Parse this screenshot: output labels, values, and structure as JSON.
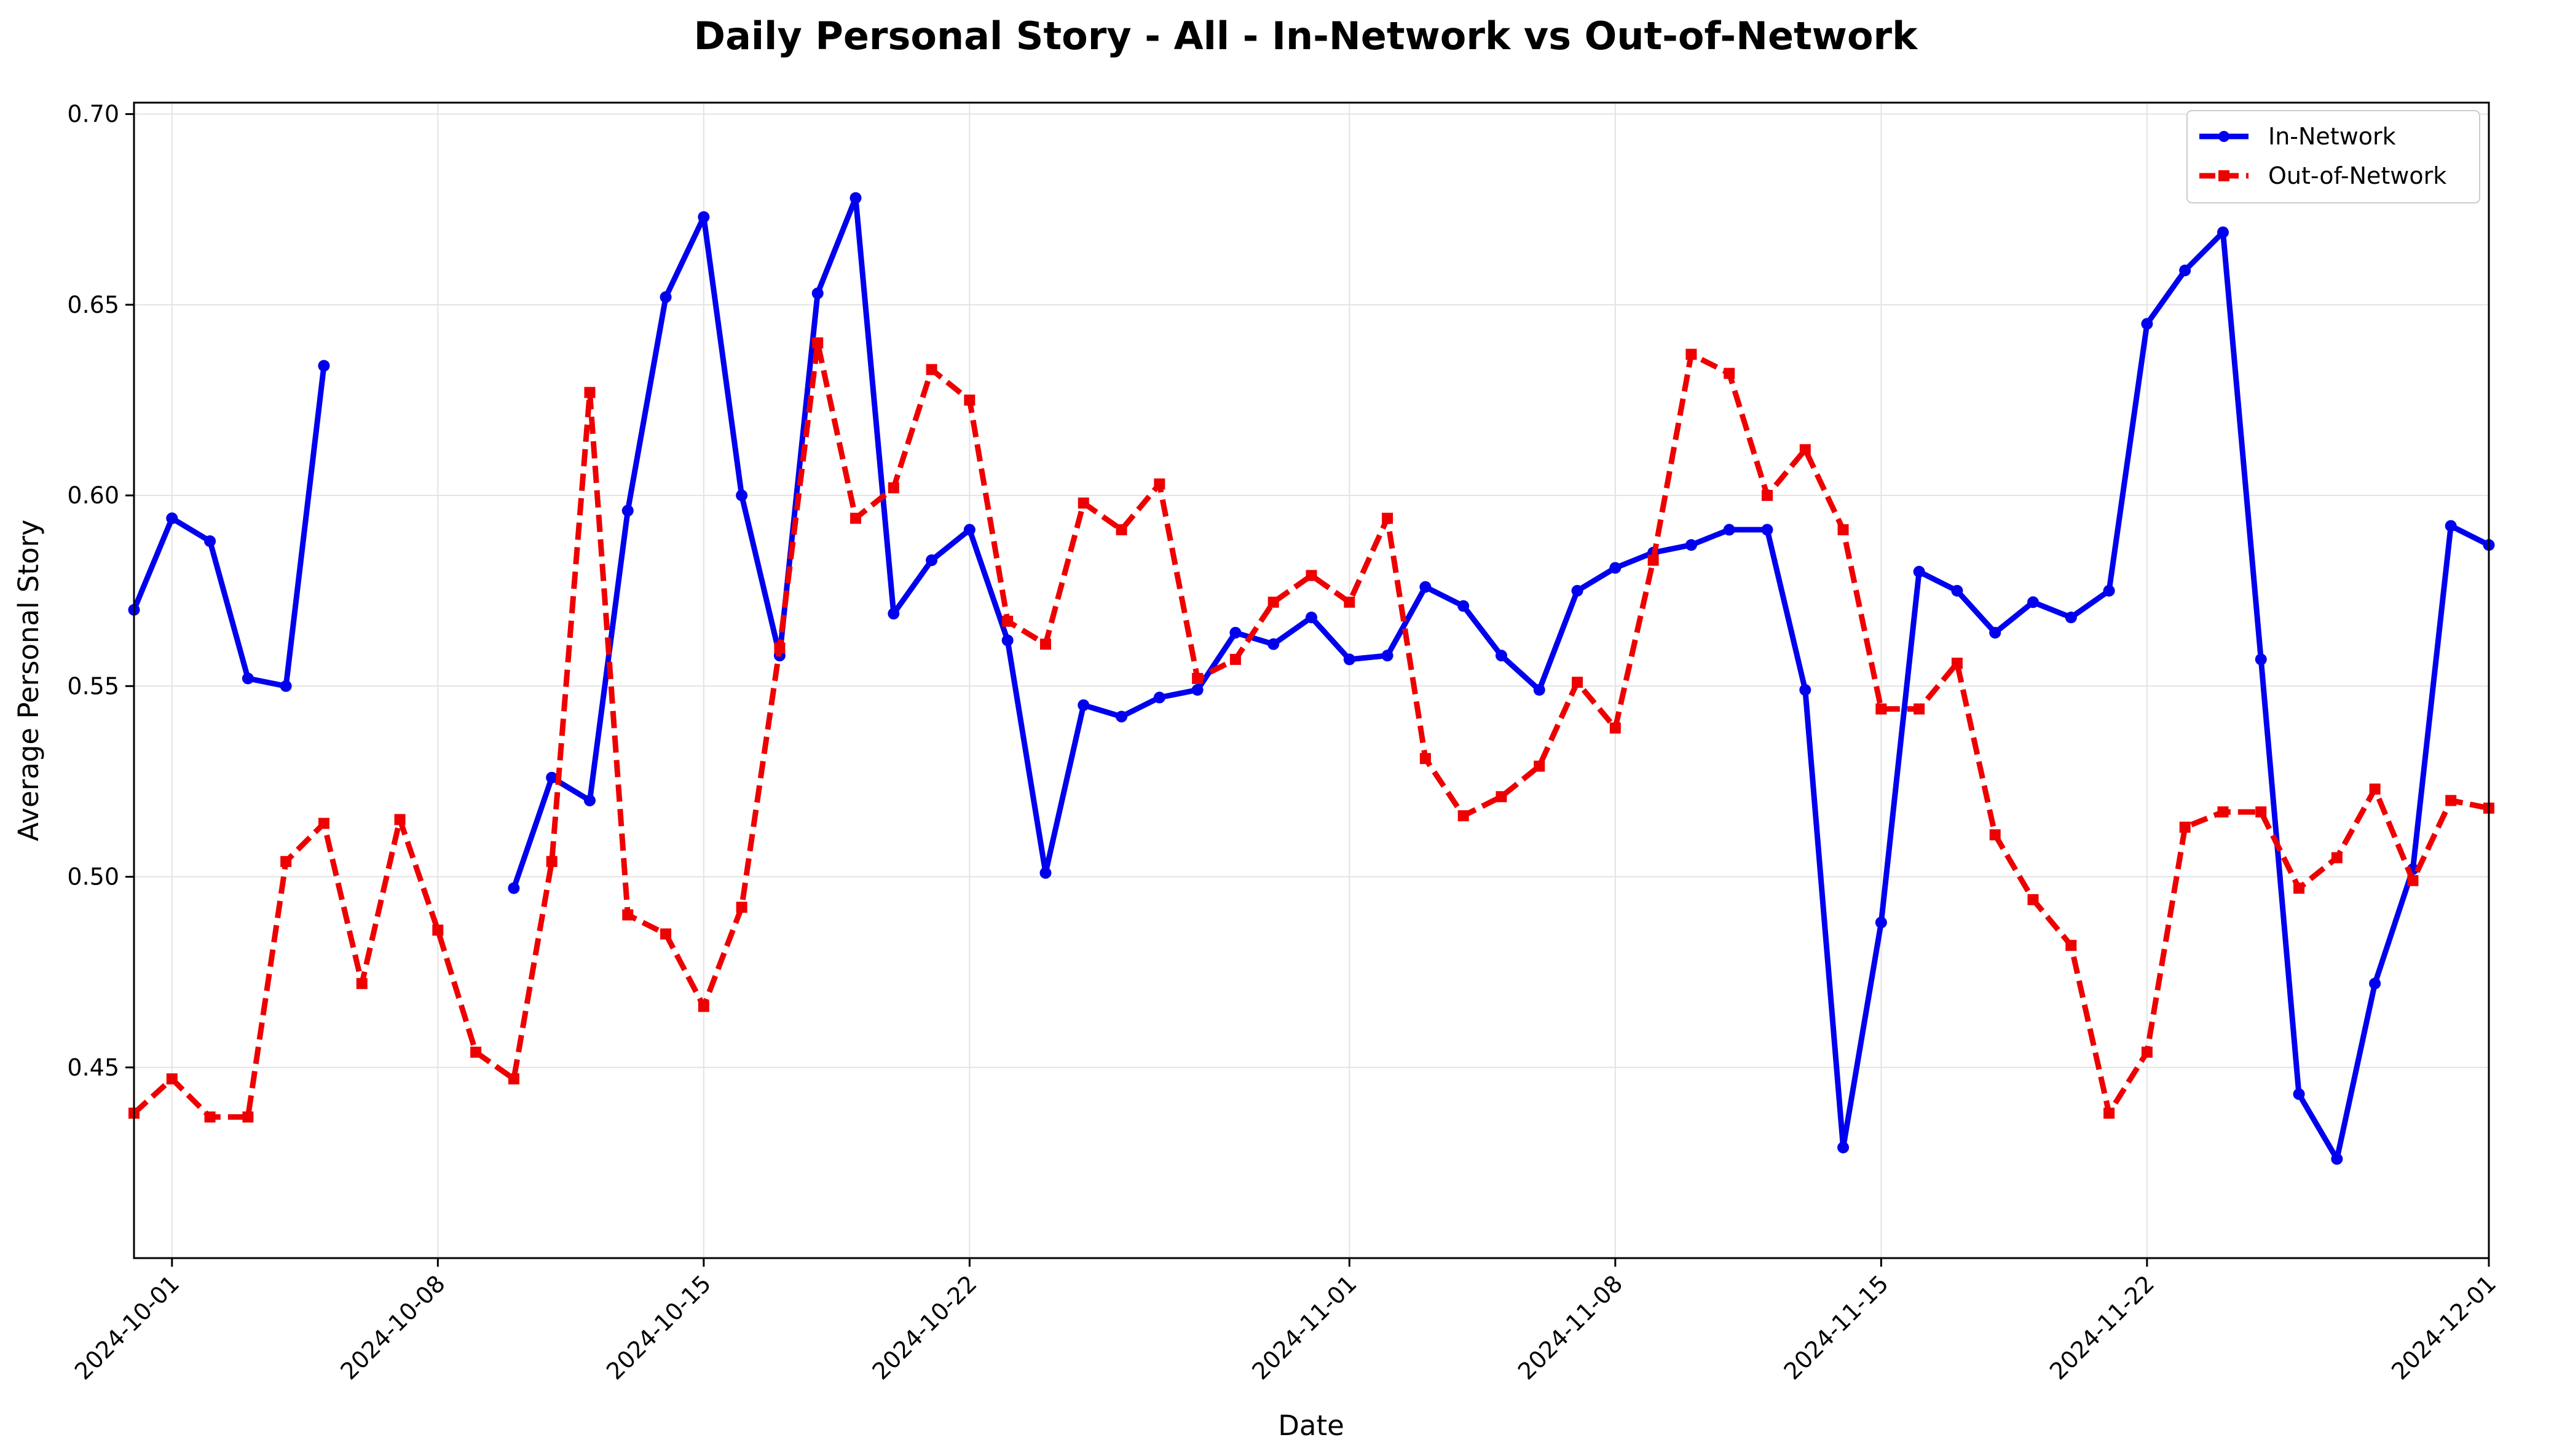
{
  "chart_data": {
    "type": "line",
    "title": "Daily Personal Story - All - In-Network vs Out-of-Network",
    "xlabel": "Date",
    "ylabel": "Average Personal Story",
    "xlim": [
      "2024-09-30",
      "2024-12-01"
    ],
    "ylim": [
      0.4,
      0.703
    ],
    "x_ticks": [
      "2024-10-01",
      "2024-10-08",
      "2024-10-15",
      "2024-10-22",
      "2024-11-01",
      "2024-11-08",
      "2024-11-15",
      "2024-11-22",
      "2024-12-01"
    ],
    "y_ticks": [
      0.45,
      0.5,
      0.55,
      0.6,
      0.65,
      0.7
    ],
    "y_tick_labels": [
      "0.45",
      "0.50",
      "0.55",
      "0.60",
      "0.65",
      "0.70"
    ],
    "grid": true,
    "legend_position": "top-right",
    "x": [
      "2024-09-30",
      "2024-10-01",
      "2024-10-02",
      "2024-10-03",
      "2024-10-04",
      "2024-10-05",
      "2024-10-06",
      "2024-10-07",
      "2024-10-08",
      "2024-10-09",
      "2024-10-10",
      "2024-10-11",
      "2024-10-12",
      "2024-10-13",
      "2024-10-14",
      "2024-10-15",
      "2024-10-16",
      "2024-10-17",
      "2024-10-18",
      "2024-10-19",
      "2024-10-20",
      "2024-10-21",
      "2024-10-22",
      "2024-10-23",
      "2024-10-24",
      "2024-10-25",
      "2024-10-26",
      "2024-10-27",
      "2024-10-28",
      "2024-10-29",
      "2024-10-30",
      "2024-10-31",
      "2024-11-01",
      "2024-11-02",
      "2024-11-03",
      "2024-11-04",
      "2024-11-05",
      "2024-11-06",
      "2024-11-07",
      "2024-11-08",
      "2024-11-09",
      "2024-11-10",
      "2024-11-11",
      "2024-11-12",
      "2024-11-13",
      "2024-11-14",
      "2024-11-15",
      "2024-11-16",
      "2024-11-17",
      "2024-11-18",
      "2024-11-19",
      "2024-11-20",
      "2024-11-21",
      "2024-11-22",
      "2024-11-23",
      "2024-11-24",
      "2024-11-25",
      "2024-11-26",
      "2024-11-27",
      "2024-11-28",
      "2024-11-29",
      "2024-11-30",
      "2024-12-01"
    ],
    "series": [
      {
        "name": "In-Network",
        "color": "#0000ee",
        "style": "solid",
        "marker": "circle",
        "values": [
          0.57,
          0.594,
          0.588,
          0.552,
          0.55,
          0.634,
          null,
          null,
          null,
          null,
          0.497,
          0.526,
          0.52,
          0.596,
          0.652,
          0.673,
          0.6,
          0.558,
          0.653,
          0.678,
          0.569,
          0.583,
          0.591,
          0.562,
          0.501,
          0.545,
          0.542,
          0.547,
          0.549,
          0.564,
          0.561,
          0.568,
          0.557,
          0.558,
          0.576,
          0.571,
          0.558,
          0.549,
          0.575,
          0.581,
          0.585,
          0.587,
          0.591,
          0.591,
          0.549,
          0.429,
          0.488,
          0.58,
          0.575,
          0.564,
          0.572,
          0.568,
          0.575,
          0.645,
          0.659,
          0.669,
          0.557,
          0.443,
          0.426,
          0.472,
          0.502,
          0.592,
          0.587
        ]
      },
      {
        "name": "Out-of-Network",
        "color": "#ee0000",
        "style": "dashed",
        "marker": "square",
        "values": [
          0.438,
          0.447,
          0.437,
          0.437,
          0.504,
          0.514,
          0.472,
          0.515,
          0.486,
          0.454,
          0.447,
          0.504,
          0.627,
          0.49,
          0.485,
          0.466,
          0.492,
          0.56,
          0.64,
          0.594,
          0.602,
          0.633,
          0.625,
          0.567,
          0.561,
          0.598,
          0.591,
          0.603,
          0.552,
          0.557,
          0.572,
          0.579,
          0.572,
          0.594,
          0.531,
          0.516,
          0.521,
          0.529,
          0.551,
          0.539,
          0.583,
          0.637,
          0.632,
          0.6,
          0.612,
          0.591,
          0.544,
          0.544,
          0.556,
          0.511,
          0.494,
          0.482,
          0.438,
          0.454,
          0.513,
          0.517,
          0.517,
          0.497,
          0.505,
          0.523,
          0.499,
          0.52,
          0.518
        ]
      }
    ]
  }
}
